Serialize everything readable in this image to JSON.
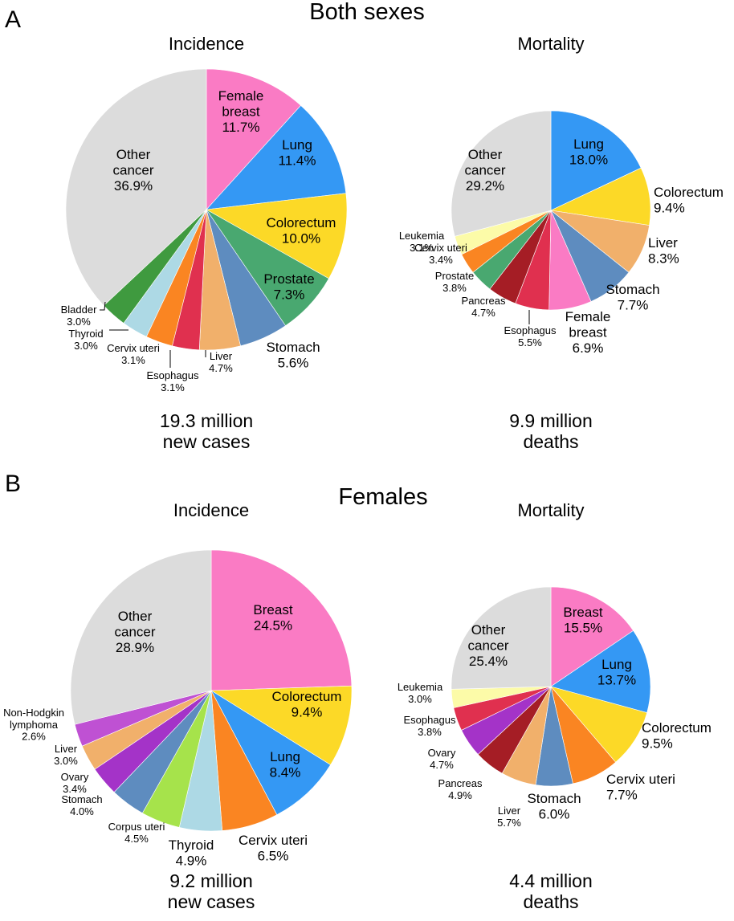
{
  "panels": [
    {
      "letter": "A",
      "title": "Both sexes"
    },
    {
      "letter": "B",
      "title": "Females"
    }
  ],
  "colors": {
    "other": "#dcdcdc",
    "pink": "#fa7bc4",
    "blue": "#3498f4",
    "yellow": "#fcd927",
    "green": "#49a870",
    "steel": "#5e8cbf",
    "tan": "#f1b06b",
    "crimson": "#e0304f",
    "orange": "#fa8522",
    "lightblue": "#add9e5",
    "darkgreen": "#3f9a3f",
    "darkred": "#a51d25",
    "lightyellow": "#fcfba8",
    "purple": "#a433c8",
    "lavender": "#bf51d3",
    "lime": "#a6e34b"
  },
  "chart_data": [
    {
      "type": "pie",
      "panel": "A",
      "title": "Incidence",
      "total_line1": "19.3 million",
      "total_line2": "new cases",
      "slices": [
        {
          "lines": [
            "Female",
            "breast"
          ],
          "pct": "11.7%",
          "value": 11.7,
          "color": "pink"
        },
        {
          "lines": [
            "Lung"
          ],
          "pct": "11.4%",
          "value": 11.4,
          "color": "blue"
        },
        {
          "lines": [
            "Colorectum"
          ],
          "pct": "10.0%",
          "value": 10.0,
          "color": "yellow"
        },
        {
          "lines": [
            "Prostate"
          ],
          "pct": "7.3%",
          "value": 7.3,
          "color": "green"
        },
        {
          "lines": [
            "Stomach"
          ],
          "pct": "5.6%",
          "value": 5.6,
          "color": "steel"
        },
        {
          "lines": [
            "Liver"
          ],
          "pct": "4.7%",
          "value": 4.7,
          "color": "tan"
        },
        {
          "lines": [
            "Esophagus"
          ],
          "pct": "3.1%",
          "value": 3.1,
          "color": "crimson"
        },
        {
          "lines": [
            "Cervix uteri"
          ],
          "pct": "3.1%",
          "value": 3.1,
          "color": "orange"
        },
        {
          "lines": [
            "Thyroid"
          ],
          "pct": "3.0%",
          "value": 3.0,
          "color": "lightblue"
        },
        {
          "lines": [
            "Bladder"
          ],
          "pct": "3.0%",
          "value": 3.0,
          "color": "darkgreen"
        },
        {
          "lines": [
            "Other",
            "cancer"
          ],
          "pct": "36.9%",
          "value": 36.9,
          "color": "other"
        }
      ]
    },
    {
      "type": "pie",
      "panel": "A",
      "title": "Mortality",
      "total_line1": "9.9 million",
      "total_line2": "deaths",
      "slices": [
        {
          "lines": [
            "Lung"
          ],
          "pct": "18.0%",
          "value": 18.0,
          "color": "blue"
        },
        {
          "lines": [
            "Colorectum"
          ],
          "pct": "9.4%",
          "value": 9.4,
          "color": "yellow"
        },
        {
          "lines": [
            "Liver"
          ],
          "pct": "8.3%",
          "value": 8.3,
          "color": "tan"
        },
        {
          "lines": [
            "Stomach"
          ],
          "pct": "7.7%",
          "value": 7.7,
          "color": "steel"
        },
        {
          "lines": [
            "Female",
            "breast"
          ],
          "pct": "6.9%",
          "value": 6.9,
          "color": "pink"
        },
        {
          "lines": [
            "Esophagus"
          ],
          "pct": "5.5%",
          "value": 5.5,
          "color": "crimson"
        },
        {
          "lines": [
            "Pancreas"
          ],
          "pct": "4.7%",
          "value": 4.7,
          "color": "darkred"
        },
        {
          "lines": [
            "Prostate"
          ],
          "pct": "3.8%",
          "value": 3.8,
          "color": "green"
        },
        {
          "lines": [
            "Cervix uteri"
          ],
          "pct": "3.4%",
          "value": 3.4,
          "color": "orange"
        },
        {
          "lines": [
            "Leukemia"
          ],
          "pct": "3.1%",
          "value": 3.1,
          "color": "lightyellow"
        },
        {
          "lines": [
            "Other",
            "cancer"
          ],
          "pct": "29.2%",
          "value": 29.2,
          "color": "other"
        }
      ]
    },
    {
      "type": "pie",
      "panel": "B",
      "title": "Incidence",
      "total_line1": "9.2 million",
      "total_line2": "new cases",
      "slices": [
        {
          "lines": [
            "Breast"
          ],
          "pct": "24.5%",
          "value": 24.5,
          "color": "pink"
        },
        {
          "lines": [
            "Colorectum"
          ],
          "pct": "9.4%",
          "value": 9.4,
          "color": "yellow"
        },
        {
          "lines": [
            "Lung"
          ],
          "pct": "8.4%",
          "value": 8.4,
          "color": "blue"
        },
        {
          "lines": [
            "Cervix uteri"
          ],
          "pct": "6.5%",
          "value": 6.5,
          "color": "orange"
        },
        {
          "lines": [
            "Thyroid"
          ],
          "pct": "4.9%",
          "value": 4.9,
          "color": "lightblue"
        },
        {
          "lines": [
            "Corpus uteri"
          ],
          "pct": "4.5%",
          "value": 4.5,
          "color": "lime"
        },
        {
          "lines": [
            "Stomach"
          ],
          "pct": "4.0%",
          "value": 4.0,
          "color": "steel"
        },
        {
          "lines": [
            "Ovary"
          ],
          "pct": "3.4%",
          "value": 3.4,
          "color": "purple"
        },
        {
          "lines": [
            "Liver"
          ],
          "pct": "3.0%",
          "value": 3.0,
          "color": "tan"
        },
        {
          "lines": [
            "Non-Hodgkin",
            "lymphoma"
          ],
          "pct": "2.6%",
          "value": 2.6,
          "color": "lavender"
        },
        {
          "lines": [
            "Other",
            "cancer"
          ],
          "pct": "28.9%",
          "value": 28.9,
          "color": "other"
        }
      ]
    },
    {
      "type": "pie",
      "panel": "B",
      "title": "Mortality",
      "total_line1": "4.4 million",
      "total_line2": "deaths",
      "slices": [
        {
          "lines": [
            "Breast"
          ],
          "pct": "15.5%",
          "value": 15.5,
          "color": "pink"
        },
        {
          "lines": [
            "Lung"
          ],
          "pct": "13.7%",
          "value": 13.7,
          "color": "blue"
        },
        {
          "lines": [
            "Colorectum"
          ],
          "pct": "9.5%",
          "value": 9.5,
          "color": "yellow"
        },
        {
          "lines": [
            "Cervix uteri"
          ],
          "pct": "7.7%",
          "value": 7.7,
          "color": "orange"
        },
        {
          "lines": [
            "Stomach"
          ],
          "pct": "6.0%",
          "value": 6.0,
          "color": "steel"
        },
        {
          "lines": [
            "Liver"
          ],
          "pct": "5.7%",
          "value": 5.7,
          "color": "tan"
        },
        {
          "lines": [
            "Pancreas"
          ],
          "pct": "4.9%",
          "value": 4.9,
          "color": "darkred"
        },
        {
          "lines": [
            "Ovary"
          ],
          "pct": "4.7%",
          "value": 4.7,
          "color": "purple"
        },
        {
          "lines": [
            "Esophagus"
          ],
          "pct": "3.8%",
          "value": 3.8,
          "color": "crimson"
        },
        {
          "lines": [
            "Leukemia"
          ],
          "pct": "3.0%",
          "value": 3.0,
          "color": "lightyellow"
        },
        {
          "lines": [
            "Other",
            "cancer"
          ],
          "pct": "25.4%",
          "value": 25.4,
          "color": "other"
        }
      ]
    }
  ]
}
